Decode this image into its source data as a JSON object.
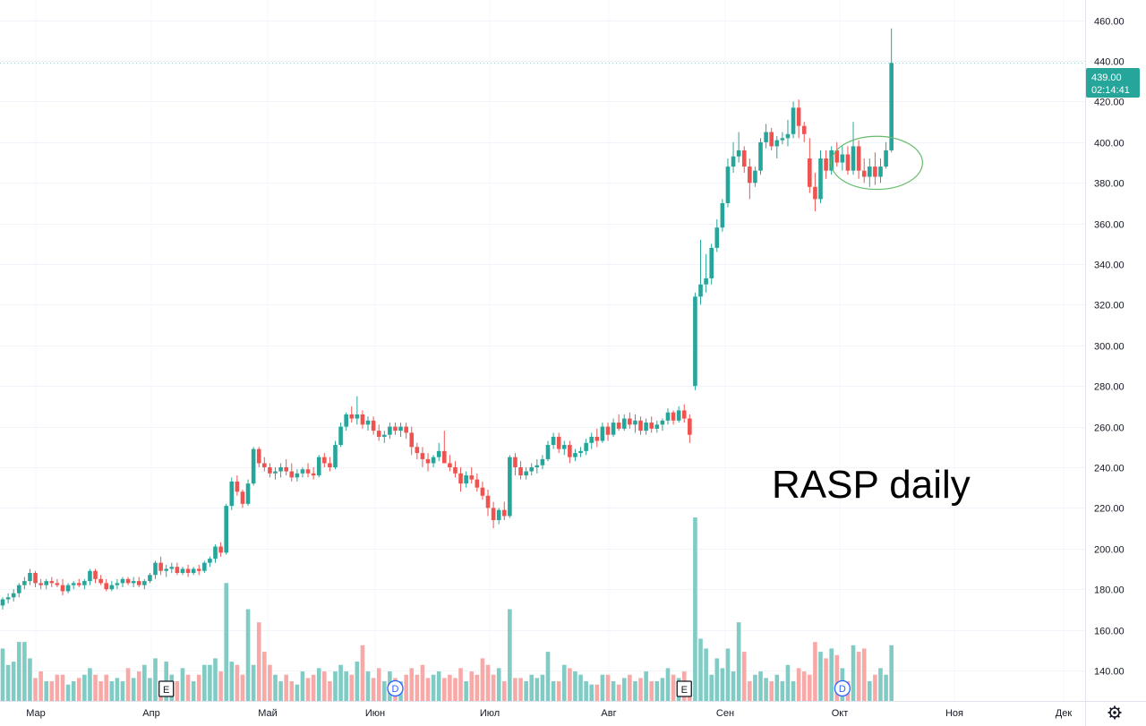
{
  "chart_data": {
    "type": "candlestick",
    "annotation": "RASP daily",
    "y_axis": {
      "min": 125,
      "max": 470,
      "ticks": [
        "140.00",
        "160.00",
        "180.00",
        "200.00",
        "220.00",
        "240.00",
        "260.00",
        "280.00",
        "300.00",
        "320.00",
        "340.00",
        "360.00",
        "380.00",
        "400.00",
        "420.00",
        "440.00",
        "460.00"
      ]
    },
    "x_axis": {
      "months": [
        "Мар",
        "Апр",
        "Май",
        "Июн",
        "Июл",
        "Авг",
        "Сен",
        "Окт",
        "Ноя",
        "Дек"
      ]
    },
    "last_price": {
      "value": "439.00",
      "countdown": "02:14:41",
      "price": 439
    },
    "colors": {
      "up": "#26a69a",
      "down": "#ef5350",
      "up_volume": "#80cbc4",
      "down_volume": "#f7a9a7",
      "highlight": "#66bb6a",
      "price_label_bg": "#26a69a",
      "event_marker": "#131722",
      "dividend_marker": "#2962ff"
    },
    "events": [
      {
        "type": "earnings",
        "label": "E",
        "index": 30
      },
      {
        "type": "dividend",
        "label": "D",
        "index": 72
      },
      {
        "type": "earnings",
        "label": "E",
        "index": 125
      },
      {
        "type": "dividend",
        "label": "D",
        "index": 154
      }
    ],
    "highlight_candle_index": 160,
    "candles": [
      [
        172,
        176,
        170,
        175,
        16
      ],
      [
        175,
        178,
        173,
        176,
        11
      ],
      [
        176,
        180,
        174,
        178,
        12
      ],
      [
        178,
        183,
        176,
        182,
        18
      ],
      [
        182,
        186,
        180,
        184,
        18
      ],
      [
        184,
        190,
        182,
        188,
        13
      ],
      [
        188,
        189,
        181,
        183,
        7
      ],
      [
        183,
        185,
        180,
        182,
        9
      ],
      [
        182,
        185,
        180,
        184,
        6
      ],
      [
        184,
        186,
        181,
        183,
        6
      ],
      [
        183,
        185,
        181,
        182,
        8
      ],
      [
        182,
        185,
        177,
        179,
        8
      ],
      [
        179,
        183,
        178,
        182,
        5
      ],
      [
        182,
        184,
        180,
        183,
        6
      ],
      [
        183,
        185,
        181,
        182,
        7
      ],
      [
        182,
        185,
        180,
        184,
        8
      ],
      [
        184,
        190,
        182,
        189,
        10
      ],
      [
        189,
        190,
        183,
        185,
        8
      ],
      [
        185,
        187,
        182,
        183,
        6
      ],
      [
        183,
        185,
        179,
        180,
        8
      ],
      [
        180,
        184,
        179,
        182,
        6
      ],
      [
        182,
        185,
        180,
        183,
        7
      ],
      [
        183,
        186,
        181,
        185,
        6
      ],
      [
        185,
        186,
        182,
        183,
        10
      ],
      [
        183,
        186,
        181,
        184,
        7
      ],
      [
        184,
        186,
        181,
        182,
        9
      ],
      [
        182,
        185,
        180,
        184,
        11
      ],
      [
        184,
        188,
        183,
        187,
        7
      ],
      [
        187,
        194,
        185,
        193,
        13
      ],
      [
        193,
        196,
        187,
        189,
        6
      ],
      [
        189,
        192,
        186,
        190,
        12
      ],
      [
        190,
        193,
        188,
        191,
        8
      ],
      [
        191,
        193,
        187,
        188,
        6
      ],
      [
        188,
        191,
        187,
        190,
        10
      ],
      [
        190,
        192,
        186,
        188,
        8
      ],
      [
        188,
        191,
        187,
        190,
        6
      ],
      [
        190,
        192,
        187,
        189,
        8
      ],
      [
        189,
        194,
        188,
        193,
        11
      ],
      [
        193,
        196,
        191,
        195,
        11
      ],
      [
        195,
        202,
        193,
        201,
        13
      ],
      [
        201,
        203,
        196,
        198,
        9
      ],
      [
        198,
        222,
        197,
        221,
        36
      ],
      [
        221,
        235,
        219,
        233,
        12
      ],
      [
        233,
        236,
        226,
        228,
        11
      ],
      [
        228,
        229,
        220,
        222,
        8
      ],
      [
        222,
        234,
        221,
        232,
        28
      ],
      [
        232,
        250,
        231,
        249,
        11
      ],
      [
        249,
        250,
        240,
        242,
        24
      ],
      [
        242,
        245,
        238,
        240,
        15
      ],
      [
        240,
        242,
        235,
        237,
        11
      ],
      [
        237,
        240,
        234,
        238,
        8
      ],
      [
        238,
        242,
        235,
        240,
        6
      ],
      [
        240,
        244,
        236,
        238,
        8
      ],
      [
        238,
        242,
        233,
        235,
        6
      ],
      [
        235,
        239,
        233,
        237,
        5
      ],
      [
        237,
        240,
        235,
        239,
        9
      ],
      [
        239,
        242,
        235,
        237,
        7
      ],
      [
        237,
        240,
        234,
        236,
        8
      ],
      [
        236,
        246,
        235,
        245,
        10
      ],
      [
        245,
        247,
        240,
        242,
        9
      ],
      [
        242,
        245,
        238,
        240,
        6
      ],
      [
        240,
        253,
        239,
        251,
        9
      ],
      [
        251,
        262,
        250,
        260,
        11
      ],
      [
        260,
        267,
        258,
        266,
        9
      ],
      [
        266,
        270,
        262,
        264,
        8
      ],
      [
        264,
        275,
        261,
        266,
        12
      ],
      [
        266,
        268,
        259,
        261,
        17
      ],
      [
        261,
        265,
        258,
        263,
        9
      ],
      [
        263,
        265,
        256,
        258,
        7
      ],
      [
        258,
        261,
        253,
        255,
        10
      ],
      [
        255,
        258,
        252,
        256,
        6
      ],
      [
        256,
        262,
        254,
        260,
        9
      ],
      [
        260,
        262,
        256,
        258,
        7
      ],
      [
        258,
        262,
        255,
        260,
        6
      ],
      [
        260,
        262,
        254,
        257,
        8
      ],
      [
        257,
        260,
        246,
        250,
        10
      ],
      [
        250,
        252,
        244,
        247,
        8
      ],
      [
        247,
        250,
        240,
        244,
        11
      ],
      [
        244,
        247,
        238,
        242,
        7
      ],
      [
        242,
        246,
        240,
        245,
        8
      ],
      [
        245,
        252,
        243,
        248,
        9
      ],
      [
        248,
        258,
        244,
        242,
        7
      ],
      [
        242,
        246,
        238,
        240,
        8
      ],
      [
        240,
        243,
        235,
        237,
        7
      ],
      [
        237,
        240,
        228,
        232,
        10
      ],
      [
        232,
        238,
        230,
        236,
        6
      ],
      [
        236,
        240,
        232,
        234,
        9
      ],
      [
        234,
        237,
        228,
        230,
        8
      ],
      [
        230,
        233,
        224,
        226,
        13
      ],
      [
        226,
        229,
        216,
        220,
        11
      ],
      [
        220,
        223,
        210,
        214,
        8
      ],
      [
        214,
        220,
        212,
        219,
        10
      ],
      [
        219,
        223,
        214,
        216,
        6
      ],
      [
        216,
        246,
        215,
        245,
        28
      ],
      [
        245,
        247,
        236,
        240,
        7
      ],
      [
        240,
        243,
        234,
        236,
        7
      ],
      [
        236,
        240,
        234,
        238,
        6
      ],
      [
        238,
        242,
        236,
        240,
        8
      ],
      [
        240,
        244,
        237,
        241,
        7
      ],
      [
        241,
        246,
        239,
        244,
        8
      ],
      [
        244,
        253,
        243,
        251,
        15
      ],
      [
        251,
        257,
        249,
        255,
        6
      ],
      [
        255,
        257,
        247,
        249,
        6
      ],
      [
        249,
        253,
        246,
        251,
        11
      ],
      [
        251,
        253,
        242,
        245,
        10
      ],
      [
        245,
        249,
        243,
        247,
        9
      ],
      [
        247,
        250,
        245,
        248,
        8
      ],
      [
        248,
        254,
        246,
        252,
        6
      ],
      [
        252,
        257,
        249,
        255,
        5
      ],
      [
        255,
        259,
        250,
        253,
        5
      ],
      [
        253,
        262,
        252,
        260,
        8
      ],
      [
        260,
        262,
        253,
        256,
        8
      ],
      [
        256,
        264,
        255,
        262,
        6
      ],
      [
        262,
        266,
        258,
        259,
        5
      ],
      [
        259,
        266,
        258,
        264,
        7
      ],
      [
        264,
        267,
        259,
        261,
        8
      ],
      [
        261,
        266,
        257,
        263,
        6
      ],
      [
        263,
        265,
        256,
        258,
        7
      ],
      [
        258,
        264,
        256,
        262,
        9
      ],
      [
        262,
        265,
        257,
        259,
        6
      ],
      [
        259,
        263,
        257,
        261,
        6
      ],
      [
        261,
        264,
        258,
        263,
        7
      ],
      [
        263,
        269,
        261,
        267,
        10
      ],
      [
        267,
        268,
        261,
        263,
        8
      ],
      [
        263,
        270,
        262,
        268,
        7
      ],
      [
        268,
        271,
        262,
        264,
        9
      ],
      [
        264,
        266,
        252,
        256,
        6
      ],
      [
        280,
        326,
        278,
        324,
        56
      ],
      [
        324,
        352,
        320,
        330,
        19
      ],
      [
        330,
        345,
        326,
        333,
        16
      ],
      [
        333,
        350,
        330,
        348,
        8
      ],
      [
        348,
        362,
        346,
        358,
        13
      ],
      [
        358,
        372,
        356,
        370,
        10
      ],
      [
        370,
        392,
        368,
        388,
        16
      ],
      [
        388,
        400,
        385,
        393,
        9
      ],
      [
        393,
        405,
        390,
        396,
        24
      ],
      [
        396,
        398,
        385,
        388,
        15
      ],
      [
        388,
        392,
        372,
        380,
        6
      ],
      [
        380,
        388,
        378,
        386,
        8
      ],
      [
        386,
        402,
        384,
        400,
        9
      ],
      [
        400,
        409,
        397,
        405,
        7
      ],
      [
        405,
        407,
        396,
        398,
        6
      ],
      [
        398,
        403,
        392,
        401,
        8
      ],
      [
        401,
        405,
        399,
        402,
        6
      ],
      [
        402,
        411,
        398,
        404,
        11
      ],
      [
        404,
        420,
        402,
        417,
        6
      ],
      [
        417,
        421,
        402,
        408,
        10
      ],
      [
        408,
        410,
        400,
        404,
        9
      ],
      [
        392,
        402,
        375,
        378,
        8
      ],
      [
        378,
        385,
        366,
        372,
        18
      ],
      [
        372,
        396,
        370,
        392,
        15
      ],
      [
        392,
        396,
        382,
        386,
        13
      ],
      [
        386,
        398,
        384,
        396,
        16
      ],
      [
        396,
        400,
        388,
        390,
        14
      ],
      [
        390,
        398,
        386,
        394,
        10
      ],
      [
        394,
        398,
        384,
        386,
        6
      ],
      [
        386,
        410,
        384,
        398,
        17
      ],
      [
        398,
        401,
        382,
        386,
        15
      ],
      [
        386,
        392,
        380,
        383,
        16
      ],
      [
        383,
        392,
        378,
        388,
        6
      ],
      [
        388,
        395,
        379,
        383,
        8
      ],
      [
        383,
        392,
        380,
        388,
        10
      ],
      [
        388,
        400,
        387,
        396,
        8
      ],
      [
        396,
        456,
        395,
        439,
        17
      ]
    ]
  }
}
